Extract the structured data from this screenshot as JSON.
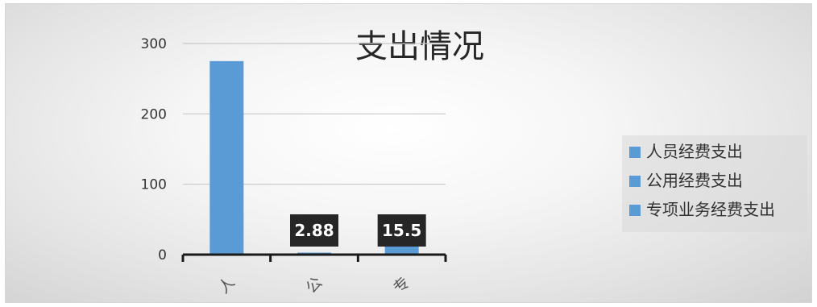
{
  "chart_data": {
    "type": "bar",
    "title": "支出情况",
    "categories": [
      "人",
      "公",
      "专"
    ],
    "values": [
      275,
      2.88,
      15.5
    ],
    "data_labels": [
      "",
      "2.88",
      "15.5"
    ],
    "ylim": [
      0,
      300
    ],
    "yticks": [
      "0",
      "100",
      "200",
      "300"
    ],
    "grid": true,
    "legend": {
      "placement": "right",
      "entries": [
        "人员经费支出",
        "公用经费支出",
        "专项业务经费支出"
      ]
    },
    "colors": {
      "bar": "#5b9bd5",
      "gridline": "#c8c8c8",
      "axis": "#1a1a1a",
      "label_box": "#262626"
    }
  }
}
